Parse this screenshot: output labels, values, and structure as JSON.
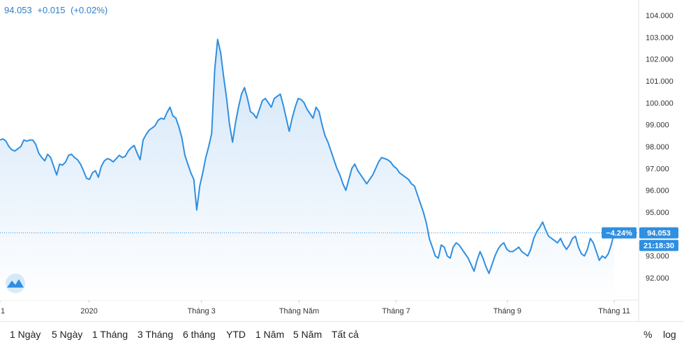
{
  "quote": {
    "price": "94.053",
    "change": "+0.015",
    "change_pct": "(+0.02%)"
  },
  "badges": {
    "change_pct": "−4.24%",
    "price": "94.053",
    "time": "21:18:30"
  },
  "colors": {
    "line": "#2f8fe0",
    "fill_top": "#cfe4f8",
    "fill_bottom": "#ffffff",
    "badge": "#2f8fe0",
    "quote_text": "#2f80c9"
  },
  "icons": [
    "logo-icon"
  ],
  "ranges": [
    "1 Ngày",
    "5 Ngày",
    "1 Tháng",
    "3 Tháng",
    "6 tháng",
    "YTD",
    "1 Năm",
    "5 Năm",
    "Tất cả"
  ],
  "tools": {
    "percent": "%",
    "log": "log"
  },
  "chart_data": {
    "type": "area",
    "y_axis_position": "right",
    "ylim": [
      91,
      104.5
    ],
    "yticks": [
      "104.000",
      "103.000",
      "102.000",
      "101.000",
      "100.000",
      "99.000",
      "98.000",
      "97.000",
      "96.000",
      "95.000",
      "93.000",
      "92.000"
    ],
    "xticks": [
      "1",
      "2020",
      "Tháng 3",
      "Tháng Năm",
      "Tháng 7",
      "Tháng 9",
      "Tháng 11"
    ],
    "last_value": 94.053,
    "grid": false,
    "series": [
      {
        "values": [
          98.3,
          98.35,
          98.25,
          98.0,
          97.85,
          97.8,
          97.9,
          98.0,
          98.3,
          98.25,
          98.3,
          98.3,
          98.1,
          97.7,
          97.5,
          97.35,
          97.65,
          97.5,
          97.1,
          96.7,
          97.2,
          97.15,
          97.3,
          97.6,
          97.65,
          97.5,
          97.4,
          97.2,
          96.9,
          96.55,
          96.5,
          96.8,
          96.9,
          96.6,
          97.1,
          97.35,
          97.45,
          97.4,
          97.3,
          97.45,
          97.6,
          97.5,
          97.55,
          97.8,
          97.95,
          98.05,
          97.7,
          97.4,
          98.3,
          98.55,
          98.75,
          98.85,
          98.95,
          99.2,
          99.3,
          99.25,
          99.55,
          99.8,
          99.4,
          99.3,
          98.9,
          98.4,
          97.6,
          97.2,
          96.8,
          96.5,
          95.1,
          96.2,
          96.8,
          97.5,
          98.0,
          98.6,
          101.5,
          102.9,
          102.3,
          101.2,
          100.2,
          99.0,
          98.2,
          99.1,
          99.8,
          100.4,
          100.7,
          100.2,
          99.6,
          99.5,
          99.3,
          99.7,
          100.1,
          100.2,
          100.0,
          99.8,
          100.2,
          100.3,
          100.4,
          99.9,
          99.3,
          98.7,
          99.3,
          99.8,
          100.2,
          100.15,
          100.0,
          99.7,
          99.5,
          99.3,
          99.8,
          99.6,
          99.0,
          98.5,
          98.2,
          97.8,
          97.4,
          97.0,
          96.7,
          96.3,
          96.0,
          96.5,
          97.0,
          97.2,
          96.9,
          96.7,
          96.5,
          96.3,
          96.5,
          96.7,
          97.0,
          97.3,
          97.5,
          97.45,
          97.4,
          97.3,
          97.1,
          97.0,
          96.8,
          96.7,
          96.6,
          96.5,
          96.3,
          96.2,
          95.8,
          95.4,
          95.0,
          94.5,
          93.8,
          93.4,
          93.0,
          92.9,
          93.5,
          93.4,
          93.0,
          92.9,
          93.4,
          93.6,
          93.5,
          93.3,
          93.1,
          92.9,
          92.6,
          92.3,
          92.8,
          93.2,
          92.9,
          92.5,
          92.2,
          92.6,
          93.0,
          93.3,
          93.5,
          93.6,
          93.3,
          93.2,
          93.2,
          93.3,
          93.4,
          93.2,
          93.1,
          93.0,
          93.3,
          93.8,
          94.1,
          94.3,
          94.55,
          94.2,
          93.9,
          93.8,
          93.7,
          93.6,
          93.8,
          93.5,
          93.3,
          93.5,
          93.8,
          93.9,
          93.4,
          93.1,
          93.0,
          93.3,
          93.8,
          93.6,
          93.2,
          92.8,
          93.0,
          92.9,
          93.1,
          93.5,
          94.053
        ]
      }
    ]
  }
}
